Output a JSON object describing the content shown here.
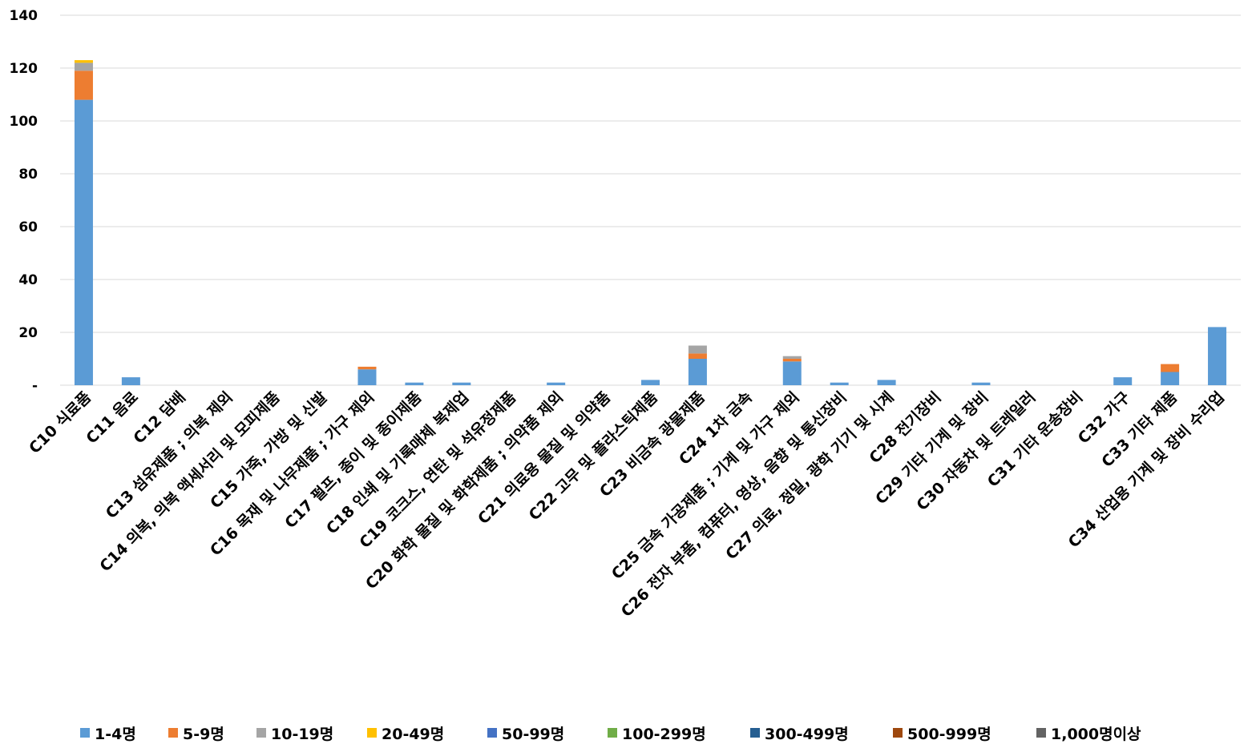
{
  "chart_data": {
    "type": "bar",
    "stacked": true,
    "title": "",
    "xlabel": "",
    "ylabel": "",
    "ylim": [
      0,
      140
    ],
    "yticks": [
      "-",
      "20",
      "40",
      "60",
      "80",
      "100",
      "120",
      "140"
    ],
    "grid": true,
    "legend_position": "bottom",
    "categories": [
      "C10 식료품",
      "C11 음료",
      "C12 담배",
      "C13 섬유제품 ; 의복 제외",
      "C14 의복, 의복 액세서리 및 모피제품",
      "C15 가죽, 가방 및 신발",
      "C16 목재 및 나무제품 ; 가구 제외",
      "C17 펄프, 종이 및 종이제품",
      "C18 인쇄 및 기록매체 복제업",
      "C19 코크스, 연탄 및 석유정제품",
      "C20 화학 물질 및 화학제품 ; 의약품 제외",
      "C21 의료용 물질 및 의약품",
      "C22 고무 및 플라스틱제품",
      "C23 비금속 광물제품",
      "C24 1차 금속",
      "C25 금속 가공제품 ; 기계 및 가구 제외",
      "C26 전자 부품, 컴퓨터, 영상, 음향 및 통신장비",
      "C27 의료, 정밀, 광학 기기 및 시계",
      "C28 전기장비",
      "C29 기타 기계 및 장비",
      "C30 자동차 및 트레일러",
      "C31 기타 운송장비",
      "C32 가구",
      "C33 기타 제품",
      "C34 산업용 기계 및 장비 수리업"
    ],
    "series": [
      {
        "name": "1-4명",
        "color": "#5B9BD5",
        "values": [
          108,
          3,
          0,
          0,
          0,
          0,
          6,
          1,
          1,
          0,
          1,
          0,
          2,
          10,
          0,
          9,
          1,
          2,
          0,
          1,
          0,
          0,
          3,
          5,
          22
        ]
      },
      {
        "name": "5-9명",
        "color": "#ED7D31",
        "values": [
          11,
          0,
          0,
          0,
          0,
          0,
          1,
          0,
          0,
          0,
          0,
          0,
          0,
          2,
          0,
          1,
          0,
          0,
          0,
          0,
          0,
          0,
          0,
          3,
          0
        ]
      },
      {
        "name": "10-19명",
        "color": "#A5A5A5",
        "values": [
          3,
          0,
          0,
          0,
          0,
          0,
          0,
          0,
          0,
          0,
          0,
          0,
          0,
          3,
          0,
          1,
          0,
          0,
          0,
          0,
          0,
          0,
          0,
          0,
          0
        ]
      },
      {
        "name": "20-49명",
        "color": "#FFC000",
        "values": [
          1,
          0,
          0,
          0,
          0,
          0,
          0,
          0,
          0,
          0,
          0,
          0,
          0,
          0,
          0,
          0,
          0,
          0,
          0,
          0,
          0,
          0,
          0,
          0,
          0
        ]
      },
      {
        "name": "50-99명",
        "color": "#4472C4",
        "values": [
          0,
          0,
          0,
          0,
          0,
          0,
          0,
          0,
          0,
          0,
          0,
          0,
          0,
          0,
          0,
          0,
          0,
          0,
          0,
          0,
          0,
          0,
          0,
          0,
          0
        ]
      },
      {
        "name": "100-299명",
        "color": "#70AD47",
        "values": [
          0,
          0,
          0,
          0,
          0,
          0,
          0,
          0,
          0,
          0,
          0,
          0,
          0,
          0,
          0,
          0,
          0,
          0,
          0,
          0,
          0,
          0,
          0,
          0,
          0
        ]
      },
      {
        "name": "300-499명",
        "color": "#255E91",
        "values": [
          0,
          0,
          0,
          0,
          0,
          0,
          0,
          0,
          0,
          0,
          0,
          0,
          0,
          0,
          0,
          0,
          0,
          0,
          0,
          0,
          0,
          0,
          0,
          0,
          0
        ]
      },
      {
        "name": "500-999명",
        "color": "#9E480E",
        "values": [
          0,
          0,
          0,
          0,
          0,
          0,
          0,
          0,
          0,
          0,
          0,
          0,
          0,
          0,
          0,
          0,
          0,
          0,
          0,
          0,
          0,
          0,
          0,
          0,
          0
        ]
      },
      {
        "name": "1,000명이상",
        "color": "#636363",
        "values": [
          0,
          0,
          0,
          0,
          0,
          0,
          0,
          0,
          0,
          0,
          0,
          0,
          0,
          0,
          0,
          0,
          0,
          0,
          0,
          0,
          0,
          0,
          0,
          0,
          0
        ]
      }
    ]
  }
}
